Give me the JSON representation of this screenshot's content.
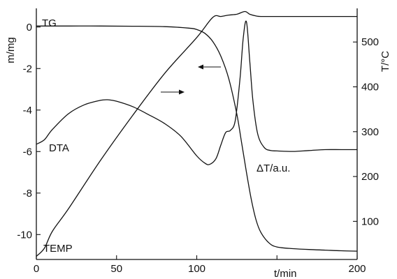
{
  "chart_data": {
    "type": "line",
    "title": "",
    "xlabel": "t/min",
    "ylabel_left": "m/mg",
    "ylabel_right": "T/°C",
    "xlim": [
      0,
      200
    ],
    "ylim_left": [
      -11.2,
      0.9
    ],
    "ylim_right": [
      15,
      575
    ],
    "grid": false,
    "x_ticks": [
      {
        "value": 0,
        "label": "0"
      },
      {
        "value": 50,
        "label": "50"
      },
      {
        "value": 100,
        "label": "100"
      },
      {
        "value": 150,
        "label": ""
      },
      {
        "value": 200,
        "label": "200"
      }
    ],
    "y_left_ticks": [
      {
        "value": 0,
        "label": "0"
      },
      {
        "value": -2,
        "label": "-2"
      },
      {
        "value": -4,
        "label": "-4"
      },
      {
        "value": -6,
        "label": "-6"
      },
      {
        "value": -8,
        "label": "-8"
      },
      {
        "value": -10,
        "label": "-10"
      }
    ],
    "y_right_ticks": [
      {
        "value": 100,
        "label": "100"
      },
      {
        "value": 200,
        "label": "200"
      },
      {
        "value": 300,
        "label": "300"
      },
      {
        "value": 400,
        "label": "400"
      },
      {
        "value": 500,
        "label": "500"
      }
    ],
    "series": [
      {
        "name": "TG",
        "axis": "left",
        "x": [
          0,
          20,
          40,
          60,
          80,
          95,
          100,
          105,
          110,
          115,
          120,
          125,
          128,
          131,
          134,
          137,
          140,
          145,
          150,
          160,
          170,
          180,
          190,
          200
        ],
        "y": [
          0.05,
          0.05,
          0.05,
          0.04,
          0.02,
          -0.05,
          -0.12,
          -0.3,
          -0.7,
          -1.4,
          -2.5,
          -4.2,
          -5.6,
          -7.0,
          -8.3,
          -9.3,
          -9.9,
          -10.4,
          -10.6,
          -10.68,
          -10.72,
          -10.75,
          -10.78,
          -10.8
        ]
      },
      {
        "name": "DTA",
        "axis": "right",
        "x": [
          0,
          5,
          10,
          20,
          30,
          40,
          45,
          50,
          60,
          70,
          80,
          90,
          100,
          105,
          108,
          112,
          115,
          118,
          121,
          124,
          127,
          129,
          131,
          133,
          135,
          138,
          142,
          146,
          150,
          160,
          170,
          180,
          190,
          200
        ],
        "y": [
          272,
          282,
          305,
          340,
          360,
          370,
          371,
          368,
          356,
          338,
          318,
          290,
          246,
          230,
          227,
          240,
          270,
          298,
          303,
          325,
          420,
          510,
          545,
          460,
          370,
          295,
          265,
          258,
          257,
          256,
          258,
          260,
          260,
          260
        ]
      },
      {
        "name": "TEMP",
        "axis": "right",
        "x": [
          0,
          5,
          10,
          20,
          40,
          60,
          80,
          100,
          110,
          115,
          120,
          125,
          130,
          133,
          137,
          140,
          150,
          170,
          200
        ],
        "y": [
          22,
          40,
          78,
          128,
          236,
          336,
          430,
          510,
          555,
          557,
          560,
          562,
          568,
          562,
          558,
          557,
          557,
          557,
          557
        ]
      }
    ],
    "labels": {
      "tg": "TG",
      "dta": "DTA",
      "temp": "TEMP",
      "dta_unit": "ΔT/a.u."
    },
    "annotations": [
      {
        "type": "arrow",
        "direction": "left",
        "refers_to": "TG"
      },
      {
        "type": "arrow",
        "direction": "right",
        "refers_to": "TEMP"
      }
    ]
  }
}
